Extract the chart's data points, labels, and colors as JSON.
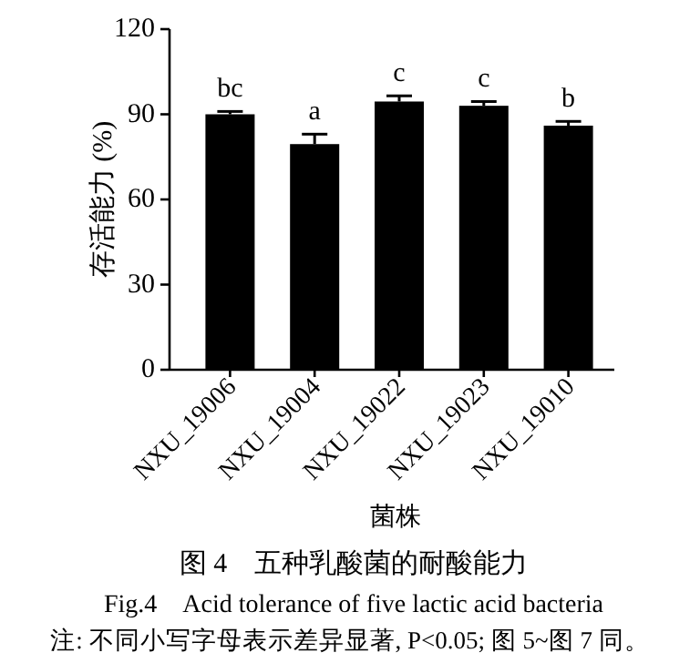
{
  "chart_data": {
    "type": "bar",
    "title": "图 4　五种乳酸菌的耐酸能力",
    "subtitle": "Fig.4　Acid tolerance of five lactic acid bacteria",
    "xlabel": "菌株",
    "ylabel": "存活能力 (%)",
    "categories": [
      "NXU_19006",
      "NXU_19004",
      "NXU_19022",
      "NXU_19023",
      "NXU_19010"
    ],
    "values": [
      90,
      79.5,
      94.5,
      93,
      86
    ],
    "errors": [
      1,
      3.5,
      2,
      1.5,
      1.5
    ],
    "color": "#000000",
    "ylim": [
      0,
      120
    ],
    "yticks": [
      0,
      30,
      60,
      90,
      120
    ],
    "grid": false,
    "annotations": [
      {
        "text": "bc",
        "x": "NXU_19006",
        "y": 91
      },
      {
        "text": "a",
        "x": "NXU_19004",
        "y": 83
      },
      {
        "text": "c",
        "x": "NXU_19022",
        "y": 96.5
      },
      {
        "text": "c",
        "x": "NXU_19023",
        "y": 94.5
      },
      {
        "text": "b",
        "x": "NXU_19010",
        "y": 87.5
      },
      "注: 不同小写字母表示差异显著, P<0.05; 图 5~图 7 同。"
    ]
  }
}
